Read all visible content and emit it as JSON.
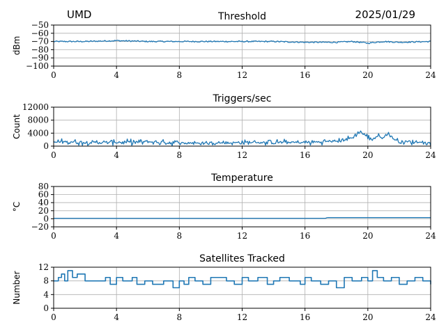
{
  "header": {
    "station": "UMD",
    "date": "2025/01/29"
  },
  "colors": {
    "series": "#1f77b4",
    "grid": "#b0b0b0",
    "axis": "#000000"
  },
  "chart_data": [
    {
      "type": "line",
      "title": "Threshold",
      "xlabel": "",
      "ylabel": "dBm",
      "xlim": [
        0,
        24
      ],
      "ylim": [
        -100,
        -50
      ],
      "xticks": [
        "0",
        "4",
        "8",
        "12",
        "16",
        "20",
        "24"
      ],
      "yticks": [
        "−50",
        "−60",
        "−70",
        "−80",
        "−90",
        "−100"
      ],
      "ytick_values": [
        -50,
        -60,
        -70,
        -80,
        -90,
        -100
      ],
      "grid": true,
      "series": [
        {
          "x": [
            0,
            2,
            4,
            6,
            8,
            10,
            12,
            14,
            16,
            18,
            19,
            20,
            21,
            22,
            24
          ],
          "values": [
            -70,
            -70,
            -69,
            -70,
            -70,
            -70,
            -70,
            -70,
            -71,
            -71,
            -70,
            -72,
            -70,
            -71,
            -70
          ],
          "noise": 0.8
        }
      ]
    },
    {
      "type": "line",
      "title": "Triggers/sec",
      "xlabel": "",
      "ylabel": "Count",
      "xlim": [
        0,
        24
      ],
      "ylim": [
        0,
        12000
      ],
      "xticks": [
        "0",
        "4",
        "8",
        "12",
        "16",
        "20",
        "24"
      ],
      "yticks": [
        "12000",
        "8000",
        "4000",
        "0"
      ],
      "ytick_values": [
        12000,
        8000,
        4000,
        0
      ],
      "grid": true,
      "series": [
        {
          "x": [
            0,
            1,
            2,
            4,
            6,
            8,
            10,
            12,
            14,
            16,
            17,
            18,
            19,
            19.5,
            19.8,
            20.2,
            20.6,
            21,
            21.3,
            21.7,
            22,
            23,
            24
          ],
          "values": [
            1200,
            1400,
            1100,
            1200,
            1300,
            1000,
            900,
            1100,
            1200,
            1100,
            1300,
            1500,
            2500,
            4500,
            3500,
            2000,
            3000,
            2500,
            4000,
            2000,
            1500,
            1200,
            1100
          ],
          "noise": 900
        }
      ]
    },
    {
      "type": "line",
      "title": "Temperature",
      "xlabel": "",
      "ylabel": "°C",
      "xlim": [
        0,
        24
      ],
      "ylim": [
        -20,
        80
      ],
      "xticks": [
        "0",
        "4",
        "8",
        "12",
        "16",
        "20",
        "24"
      ],
      "yticks": [
        "80",
        "60",
        "40",
        "20",
        "0",
        "−20"
      ],
      "ytick_values": [
        80,
        60,
        40,
        20,
        0,
        -20
      ],
      "grid": true,
      "series": [
        {
          "x": [
            0,
            17.3,
            17.4,
            24
          ],
          "values": [
            1,
            1,
            3,
            3
          ],
          "noise": 0
        }
      ]
    },
    {
      "type": "line",
      "title": "Satellites Tracked",
      "xlabel": "",
      "ylabel": "Number",
      "xlim": [
        0,
        24
      ],
      "ylim": [
        0,
        12
      ],
      "xticks": [
        "0",
        "4",
        "8",
        "12",
        "16",
        "20",
        "24"
      ],
      "yticks": [
        "12",
        "8",
        "4",
        "0"
      ],
      "ytick_values": [
        12,
        8,
        4,
        0
      ],
      "grid": true,
      "series": [
        {
          "x": [
            0,
            0.3,
            0.5,
            0.7,
            0.9,
            1.2,
            1.5,
            2,
            3,
            3.3,
            3.6,
            4,
            4.4,
            5,
            5.3,
            5.8,
            6.3,
            7,
            7.6,
            8,
            8.3,
            8.6,
            9,
            9.5,
            10,
            11,
            11.5,
            12,
            12.4,
            13,
            13.6,
            14,
            14.4,
            15,
            15.7,
            16,
            16.4,
            17,
            17.5,
            18,
            18.5,
            19,
            19.6,
            20,
            20.3,
            20.6,
            21,
            21.5,
            22,
            22.5,
            23,
            23.5,
            24
          ],
          "values": [
            8,
            9,
            10,
            8,
            11,
            9,
            10,
            8,
            8,
            9,
            7,
            9,
            8,
            9,
            7,
            8,
            7,
            8,
            6,
            8,
            7,
            9,
            8,
            7,
            9,
            8,
            7,
            9,
            8,
            9,
            7,
            8,
            9,
            8,
            7,
            9,
            8,
            7,
            8,
            6,
            9,
            8,
            9,
            8,
            11,
            9,
            8,
            9,
            7,
            8,
            9,
            8,
            7
          ],
          "step": true
        }
      ]
    }
  ]
}
